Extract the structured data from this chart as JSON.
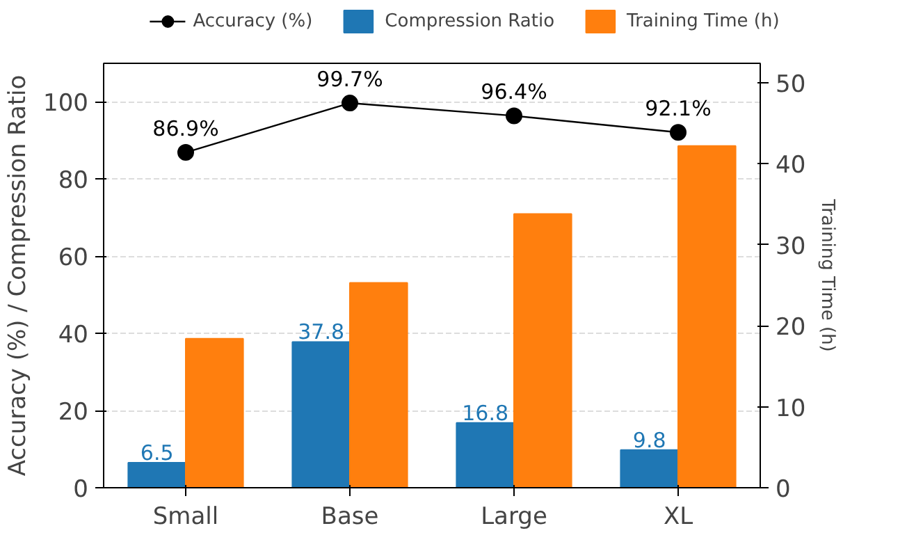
{
  "chart_data": {
    "type": "bar",
    "categories": [
      "Small",
      "Base",
      "Large",
      "XL"
    ],
    "ylabel": "Accuracy (%) / Compression Ratio",
    "y2label": "Training Time (h)",
    "ylim": [
      0,
      110
    ],
    "yticks": [
      0,
      20,
      40,
      60,
      80,
      100
    ],
    "y2lim": [
      0,
      52.4
    ],
    "y2ticks": [
      0,
      10,
      20,
      30,
      40,
      50
    ],
    "grid": "y",
    "legend": "top",
    "series": [
      {
        "name": "Accuracy (%)",
        "type": "line",
        "color": "#000000",
        "marker": "circle",
        "values": [
          86.9,
          99.7,
          96.4,
          92.1
        ],
        "value_labels": [
          "86.9%",
          "99.7%",
          "96.4%",
          "92.1%"
        ]
      },
      {
        "name": "Compression Ratio",
        "color": "#1f77b4",
        "values": [
          6.5,
          37.8,
          16.8,
          9.8
        ],
        "value_labels": [
          "6.5",
          "37.8",
          "16.8",
          "9.8"
        ]
      },
      {
        "name": "Training Time (h)",
        "color": "#ff7f0e",
        "axis": "y2",
        "values": [
          18.4,
          25.3,
          33.8,
          42.2
        ]
      }
    ]
  }
}
